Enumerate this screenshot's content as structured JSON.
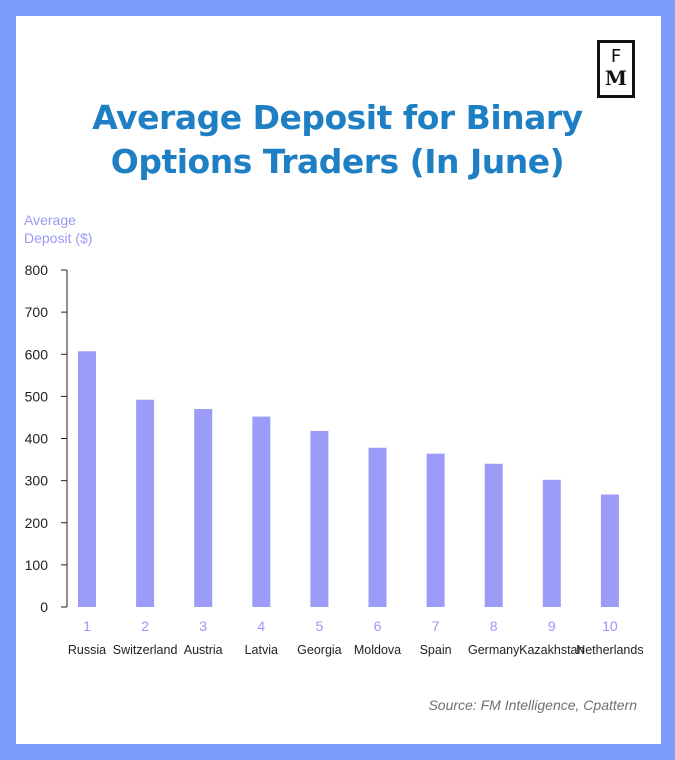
{
  "logo": {
    "top": "F",
    "bottom": "M"
  },
  "chart_data": {
    "type": "bar",
    "title_lines": [
      "Average Deposit for Binary",
      "Options Traders (In June)"
    ],
    "ylabel_lines": [
      "Average",
      "Deposit ($)"
    ],
    "xlabel": "",
    "ylim": [
      0,
      800
    ],
    "yticks": [
      0,
      100,
      200,
      300,
      400,
      500,
      600,
      700,
      800
    ],
    "index_labels": [
      "1",
      "2",
      "3",
      "4",
      "5",
      "6",
      "7",
      "8",
      "9",
      "10"
    ],
    "categories": [
      "Russia",
      "Switzerland",
      "Austria",
      "Latvia",
      "Georgia",
      "Moldova",
      "Spain",
      "Germany",
      "Kazakhstan",
      "Netherlands"
    ],
    "values": [
      607,
      492,
      470,
      452,
      418,
      378,
      364,
      340,
      302,
      267
    ],
    "bar_color": "#9b9cf7",
    "grid": false,
    "source": "Source: FM Intelligence, Cpattern"
  }
}
